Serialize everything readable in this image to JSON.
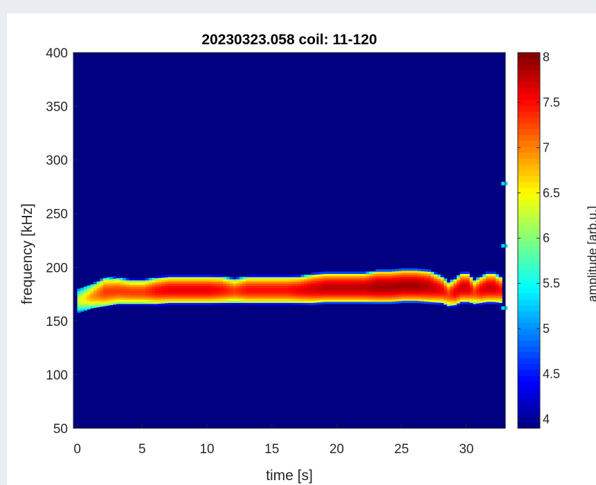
{
  "chart_data": {
    "type": "heatmap",
    "title": "20230323.058 coil: 11-120",
    "xlabel": "time [s]",
    "ylabel": "frequency [kHz]",
    "xlim": [
      -0.3,
      33.0
    ],
    "ylim": [
      50,
      400
    ],
    "xticks": [
      0,
      5,
      10,
      15,
      20,
      25,
      30
    ],
    "yticks": [
      50,
      100,
      150,
      200,
      250,
      300,
      350,
      400
    ],
    "colorbar": {
      "label": "amplitude [arb.u.]",
      "colormap": "jet",
      "range": [
        3.9,
        8.05
      ],
      "ticks": [
        4,
        4.5,
        5,
        5.5,
        6,
        6.5,
        7,
        7.5,
        8
      ],
      "tick_labels": [
        "4",
        "4.5",
        "5",
        "5.5",
        "6",
        "6.5",
        "7",
        "7.5",
        "8"
      ]
    },
    "background_amplitude": 3.9,
    "mode_band": {
      "time": [
        0.0,
        0.5,
        1.0,
        1.5,
        2.0,
        3.0,
        4.0,
        5.0,
        6.0,
        7.0,
        8.0,
        9.0,
        10.0,
        11.0,
        12.0,
        13.0,
        14.0,
        15.0,
        16.0,
        17.0,
        18.0,
        19.0,
        20.0,
        21.0,
        22.0,
        23.0,
        24.0,
        25.0,
        26.0,
        27.0,
        28.0,
        28.5,
        29.0,
        29.5,
        30.0,
        30.5,
        31.0,
        31.5,
        32.0,
        32.5
      ],
      "center_frequency_khz": [
        168,
        170,
        172,
        174,
        176,
        177,
        176,
        176,
        177,
        178,
        178,
        178,
        178,
        178,
        177,
        178,
        178,
        178,
        178,
        178,
        179,
        180,
        180,
        180,
        180,
        181,
        181,
        182,
        182,
        181,
        178,
        174,
        176,
        180,
        180,
        176,
        178,
        180,
        180,
        178
      ],
      "half_width_khz": [
        10,
        10,
        10,
        11,
        12,
        11,
        10,
        10,
        11,
        11,
        11,
        11,
        11,
        11,
        10,
        11,
        11,
        11,
        11,
        11,
        12,
        12,
        12,
        12,
        12,
        13,
        13,
        13,
        13,
        13,
        11,
        10,
        11,
        12,
        12,
        10,
        11,
        12,
        12,
        11
      ],
      "peak_amplitude": [
        6.3,
        6.6,
        6.9,
        7.1,
        7.3,
        7.3,
        7.3,
        7.3,
        7.5,
        7.6,
        7.6,
        7.6,
        7.6,
        7.5,
        7.3,
        7.5,
        7.5,
        7.5,
        7.5,
        7.6,
        7.7,
        7.8,
        7.8,
        7.8,
        7.8,
        7.9,
        7.9,
        7.9,
        7.9,
        7.8,
        7.6,
        7.3,
        7.6,
        7.7,
        7.7,
        7.3,
        7.6,
        7.7,
        7.7,
        7.5
      ]
    },
    "isolated_points": [
      {
        "time": 32.8,
        "frequency_khz": 278,
        "amplitude": 5.3
      },
      {
        "time": 32.8,
        "frequency_khz": 220,
        "amplitude": 5.3
      },
      {
        "time": 32.8,
        "frequency_khz": 162,
        "amplitude": 5.3
      }
    ]
  }
}
